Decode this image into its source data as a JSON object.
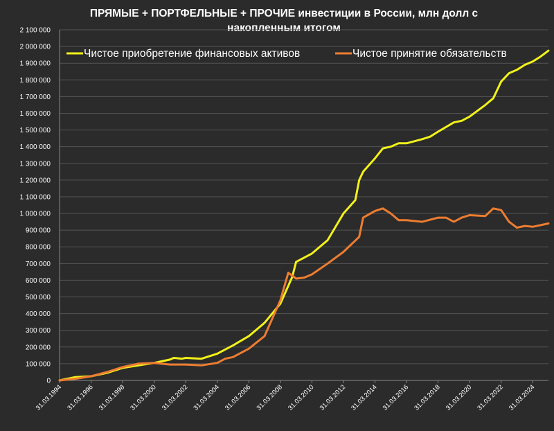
{
  "chart_data": {
    "type": "line",
    "title": "ПРЯМЫЕ + ПОРТФЕЛЬНЫЕ + ПРОЧИЕ инвестиции в России, млн долл с накопленным итогом",
    "title_lines": [
      "ПРЯМЫЕ + ПОРТФЕЛЬНЫЕ + ПРОЧИЕ инвестиции в России, млн долл с",
      "накопленным итогом"
    ],
    "ylim": [
      0,
      2100000
    ],
    "y_tick_labels": [
      "0",
      "100 000",
      "200 000",
      "300 000",
      "400 000",
      "500 000",
      "600 000",
      "700 000",
      "800 000",
      "900 000",
      "1 000 000",
      "1 100 000",
      "1 200 000",
      "1 300 000",
      "1 400 000",
      "1 500 000",
      "1 600 000",
      "1 700 000",
      "1 800 000",
      "1 900 000",
      "2 000 000",
      "2 100 000"
    ],
    "x_tick_labels": [
      "31.03.1994",
      "31.03.1996",
      "31.03.1998",
      "31.03.2000",
      "31.03.2002",
      "31.03.2004",
      "31.03.2006",
      "31.03.2008",
      "31.03.2010",
      "31.03.2012",
      "31.03.2014",
      "31.03.2016",
      "31.03.2018",
      "31.03.2020",
      "31.03.2022",
      "31.03.2024"
    ],
    "x_range": [
      "1994-03-31",
      "2025-03-31"
    ],
    "grid": true,
    "legend_position": "top",
    "series": [
      {
        "name": "Чистое приобретение финансовых активов",
        "color": "#f2f21a",
        "points": [
          [
            "1994-03-31",
            0
          ],
          [
            "1995-03-31",
            20000
          ],
          [
            "1996-03-31",
            25000
          ],
          [
            "1997-03-31",
            45000
          ],
          [
            "1998-03-31",
            75000
          ],
          [
            "1999-03-31",
            90000
          ],
          [
            "2000-03-31",
            105000
          ],
          [
            "2001-03-31",
            125000
          ],
          [
            "2001-06-30",
            135000
          ],
          [
            "2001-12-31",
            130000
          ],
          [
            "2002-03-31",
            135000
          ],
          [
            "2003-03-31",
            130000
          ],
          [
            "2004-03-31",
            160000
          ],
          [
            "2005-03-31",
            210000
          ],
          [
            "2006-03-31",
            265000
          ],
          [
            "2007-03-31",
            345000
          ],
          [
            "2008-03-31",
            460000
          ],
          [
            "2008-12-31",
            620000
          ],
          [
            "2009-03-31",
            710000
          ],
          [
            "2009-09-30",
            735000
          ],
          [
            "2010-03-31",
            760000
          ],
          [
            "2011-03-31",
            840000
          ],
          [
            "2012-03-31",
            1000000
          ],
          [
            "2012-12-31",
            1080000
          ],
          [
            "2013-03-31",
            1200000
          ],
          [
            "2013-06-30",
            1250000
          ],
          [
            "2014-03-31",
            1330000
          ],
          [
            "2014-09-30",
            1390000
          ],
          [
            "2015-03-31",
            1400000
          ],
          [
            "2015-09-30",
            1420000
          ],
          [
            "2016-03-31",
            1420000
          ],
          [
            "2017-03-31",
            1445000
          ],
          [
            "2017-09-30",
            1460000
          ],
          [
            "2018-03-31",
            1490000
          ],
          [
            "2019-03-31",
            1545000
          ],
          [
            "2019-09-30",
            1555000
          ],
          [
            "2020-03-31",
            1580000
          ],
          [
            "2021-03-31",
            1650000
          ],
          [
            "2021-09-30",
            1690000
          ],
          [
            "2022-03-31",
            1790000
          ],
          [
            "2022-09-30",
            1840000
          ],
          [
            "2023-03-31",
            1860000
          ],
          [
            "2023-09-30",
            1890000
          ],
          [
            "2024-03-31",
            1910000
          ],
          [
            "2024-09-30",
            1940000
          ],
          [
            "2025-03-31",
            1975000
          ]
        ]
      },
      {
        "name": "Чистое принятие обязательств",
        "color": "#ed7d31",
        "points": [
          [
            "1994-03-31",
            0
          ],
          [
            "1995-03-31",
            10000
          ],
          [
            "1996-03-31",
            25000
          ],
          [
            "1997-03-31",
            50000
          ],
          [
            "1998-03-31",
            80000
          ],
          [
            "1999-03-31",
            100000
          ],
          [
            "2000-03-31",
            105000
          ],
          [
            "2001-03-31",
            95000
          ],
          [
            "2002-03-31",
            95000
          ],
          [
            "2003-03-31",
            90000
          ],
          [
            "2004-03-31",
            105000
          ],
          [
            "2004-09-30",
            130000
          ],
          [
            "2005-03-31",
            140000
          ],
          [
            "2006-03-31",
            190000
          ],
          [
            "2007-03-31",
            265000
          ],
          [
            "2008-03-31",
            480000
          ],
          [
            "2008-09-30",
            645000
          ],
          [
            "2009-03-31",
            610000
          ],
          [
            "2009-09-30",
            615000
          ],
          [
            "2010-03-31",
            635000
          ],
          [
            "2011-03-31",
            700000
          ],
          [
            "2012-03-31",
            770000
          ],
          [
            "2013-03-31",
            860000
          ],
          [
            "2013-06-30",
            975000
          ],
          [
            "2014-03-31",
            1015000
          ],
          [
            "2014-09-30",
            1030000
          ],
          [
            "2015-03-31",
            1000000
          ],
          [
            "2015-09-30",
            960000
          ],
          [
            "2016-03-31",
            960000
          ],
          [
            "2017-03-31",
            950000
          ],
          [
            "2018-03-31",
            975000
          ],
          [
            "2018-09-30",
            975000
          ],
          [
            "2019-03-31",
            950000
          ],
          [
            "2019-09-30",
            975000
          ],
          [
            "2020-03-31",
            990000
          ],
          [
            "2021-03-31",
            985000
          ],
          [
            "2021-09-30",
            1030000
          ],
          [
            "2022-03-31",
            1020000
          ],
          [
            "2022-09-30",
            950000
          ],
          [
            "2023-03-31",
            915000
          ],
          [
            "2023-09-30",
            925000
          ],
          [
            "2024-03-31",
            920000
          ],
          [
            "2024-09-30",
            930000
          ],
          [
            "2025-03-31",
            940000
          ]
        ]
      }
    ]
  }
}
